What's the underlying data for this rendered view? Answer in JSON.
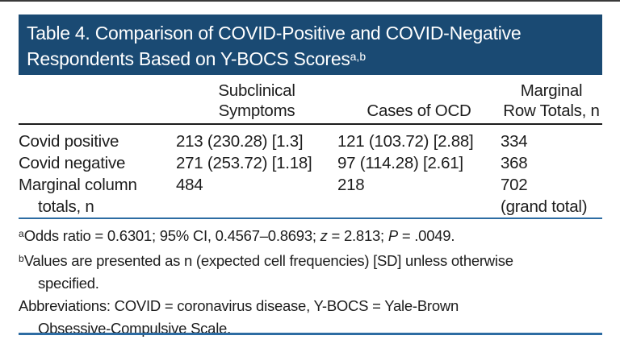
{
  "title": {
    "line1": "Table 4. Comparison of COVID-Positive and COVID-Negative",
    "line2": "Respondents Based on Y-BOCS Scores",
    "superscript": "a,b"
  },
  "table": {
    "header": {
      "col1_line1": "Subclinical",
      "col1_line2": "Symptoms",
      "col2": "Cases of OCD",
      "col3_line1": "Marginal",
      "col3_line2": "Row Totals, n"
    },
    "rows": [
      {
        "label": "Covid positive",
        "subclinical": "213 (230.28) [1.3]",
        "ocd": "121 (103.72) [2.88]",
        "total": "334"
      },
      {
        "label": "Covid negative",
        "subclinical": "271 (253.72) [1.18]",
        "ocd": "97 (114.28) [2.61]",
        "total": "368"
      }
    ],
    "totals_row": {
      "label_line1": "Marginal column",
      "label_line2": "totals, n",
      "subclinical": "484",
      "ocd": "218",
      "total_line1": "702",
      "total_line2": "(grand total)"
    }
  },
  "footnotes": {
    "a": {
      "marker": "a",
      "text1": "Odds ratio = 0.6301; 95% CI, 0.4567–0.8693; ",
      "italic1": "z",
      "text2": " = 2.813; ",
      "italic2": "P",
      "text3": " = .0049."
    },
    "b": {
      "marker": "b",
      "line1": "Values are presented as n (expected cell frequencies) [SD] unless otherwise",
      "line2": "specified."
    },
    "abbreviations": {
      "line1": "Abbreviations: COVID = coronavirus disease, Y-BOCS = Yale-Brown",
      "line2": "Obsessive-Compulsive Scale."
    }
  },
  "colors": {
    "header_bg": "#1a4a73",
    "rule_blue": "#2d6ca3",
    "rule_dark": "#1c1c1c",
    "text": "#1d1d1d",
    "title_text": "#ffffff"
  }
}
